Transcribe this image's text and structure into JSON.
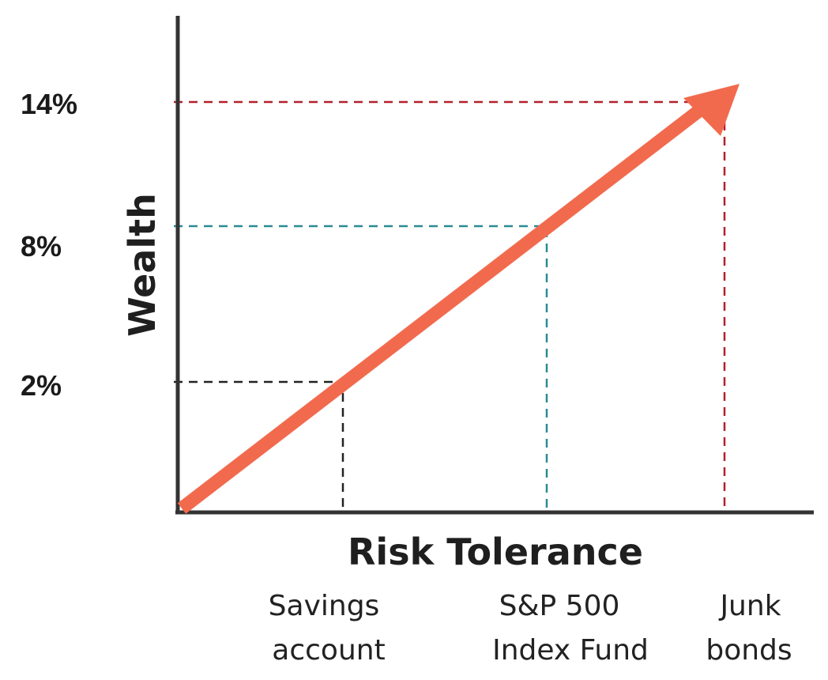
{
  "diagram": {
    "y_axis_label": "Wealth",
    "x_axis_label": "Risk Tolerance",
    "arrow_color": "#f26a4d",
    "guides": [
      {
        "y_label": "2%",
        "category_lines": [
          "Savings",
          "account"
        ],
        "color": "#222222"
      },
      {
        "y_label": "8%",
        "category_lines": [
          "S&P 500",
          "Index Fund"
        ],
        "color": "#2a8a94"
      },
      {
        "y_label": "14%",
        "category_lines": [
          "Junk",
          "bonds"
        ],
        "color": "#b3202a"
      }
    ]
  }
}
